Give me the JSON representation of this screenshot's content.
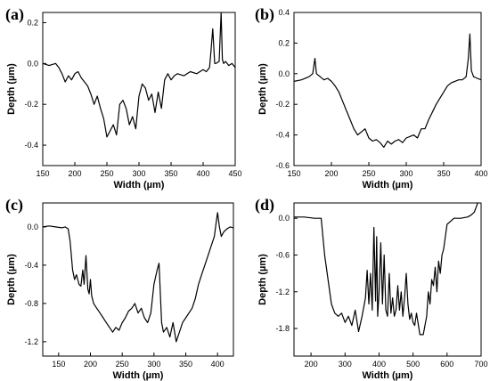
{
  "chart_data": [
    {
      "panel": "(a)",
      "type": "line",
      "xlabel": "Width (µm)",
      "ylabel": "Depth (µm)",
      "xlim": [
        150,
        450
      ],
      "ylim": [
        -0.5,
        0.25
      ],
      "xticks": [
        150,
        200,
        250,
        300,
        350,
        400,
        450
      ],
      "yticks": [
        -0.4,
        -0.2,
        0.0,
        0.2
      ],
      "series": [
        {
          "x": [
            150,
            160,
            170,
            175,
            180,
            185,
            190,
            195,
            200,
            205,
            210,
            215,
            220,
            225,
            230,
            235,
            240,
            245,
            250,
            255,
            260,
            265,
            270,
            275,
            280,
            285,
            290,
            295,
            300,
            305,
            310,
            315,
            320,
            325,
            330,
            335,
            340,
            345,
            350,
            355,
            360,
            370,
            380,
            390,
            400,
            405,
            410,
            412,
            415,
            418,
            420,
            425,
            428,
            430,
            432,
            435,
            440,
            445,
            450
          ],
          "y": [
            0.0,
            -0.01,
            0.0,
            -0.02,
            -0.05,
            -0.09,
            -0.06,
            -0.08,
            -0.05,
            -0.04,
            -0.07,
            -0.09,
            -0.11,
            -0.15,
            -0.2,
            -0.16,
            -0.22,
            -0.27,
            -0.36,
            -0.33,
            -0.3,
            -0.35,
            -0.2,
            -0.18,
            -0.22,
            -0.3,
            -0.26,
            -0.32,
            -0.16,
            -0.1,
            -0.12,
            -0.18,
            -0.15,
            -0.24,
            -0.14,
            -0.22,
            -0.08,
            -0.05,
            -0.08,
            -0.06,
            -0.05,
            -0.06,
            -0.04,
            -0.05,
            -0.03,
            -0.04,
            -0.02,
            0.05,
            0.17,
            0.0,
            0.0,
            0.01,
            0.25,
            0.02,
            0.0,
            0.01,
            -0.01,
            0.0,
            -0.02
          ]
        }
      ]
    },
    {
      "panel": "(b)",
      "type": "line",
      "xlabel": "Width (µm)",
      "ylabel": "Depth (µm)",
      "xlim": [
        150,
        400
      ],
      "ylim": [
        -0.6,
        0.4
      ],
      "xticks": [
        150,
        200,
        250,
        300,
        350,
        400
      ],
      "yticks": [
        -0.6,
        -0.4,
        -0.2,
        0.0,
        0.2,
        0.4
      ],
      "series": [
        {
          "x": [
            150,
            160,
            170,
            175,
            178,
            180,
            185,
            190,
            195,
            200,
            205,
            210,
            215,
            220,
            225,
            230,
            235,
            240,
            245,
            250,
            255,
            260,
            265,
            270,
            275,
            280,
            285,
            290,
            295,
            300,
            305,
            310,
            315,
            320,
            325,
            330,
            335,
            340,
            345,
            350,
            355,
            360,
            365,
            370,
            375,
            380,
            383,
            385,
            387,
            390,
            395,
            400
          ],
          "y": [
            -0.05,
            -0.04,
            -0.02,
            0.0,
            0.1,
            0.0,
            -0.02,
            -0.04,
            -0.03,
            -0.05,
            -0.08,
            -0.12,
            -0.18,
            -0.24,
            -0.3,
            -0.36,
            -0.4,
            -0.38,
            -0.36,
            -0.42,
            -0.44,
            -0.43,
            -0.45,
            -0.48,
            -0.44,
            -0.46,
            -0.44,
            -0.43,
            -0.45,
            -0.42,
            -0.41,
            -0.4,
            -0.42,
            -0.36,
            -0.36,
            -0.3,
            -0.25,
            -0.2,
            -0.16,
            -0.12,
            -0.08,
            -0.06,
            -0.05,
            -0.04,
            -0.04,
            -0.02,
            0.1,
            0.26,
            0.02,
            -0.02,
            -0.03,
            -0.04
          ]
        }
      ]
    },
    {
      "panel": "(c)",
      "type": "line",
      "xlabel": "Width (µm)",
      "ylabel": "Depth (µm)",
      "xlim": [
        125,
        425
      ],
      "ylim": [
        -1.35,
        0.25
      ],
      "xticks": [
        150,
        200,
        250,
        300,
        350,
        400
      ],
      "yticks": [
        -1.2,
        -0.8,
        -0.4,
        0.0
      ],
      "series": [
        {
          "x": [
            125,
            135,
            145,
            155,
            160,
            165,
            168,
            170,
            172,
            175,
            178,
            182,
            185,
            188,
            190,
            193,
            196,
            198,
            200,
            202,
            205,
            210,
            215,
            220,
            225,
            230,
            235,
            240,
            245,
            250,
            255,
            260,
            265,
            270,
            275,
            280,
            285,
            290,
            295,
            300,
            305,
            308,
            310,
            312,
            315,
            320,
            325,
            330,
            335,
            340,
            345,
            350,
            355,
            360,
            365,
            370,
            375,
            380,
            385,
            390,
            395,
            398,
            400,
            403,
            406,
            410,
            415,
            420,
            425
          ],
          "y": [
            0.0,
            0.01,
            0.0,
            -0.01,
            0.0,
            -0.02,
            -0.15,
            -0.3,
            -0.45,
            -0.55,
            -0.5,
            -0.6,
            -0.62,
            -0.45,
            -0.6,
            -0.3,
            -0.65,
            -0.7,
            -0.55,
            -0.72,
            -0.8,
            -0.85,
            -0.9,
            -0.95,
            -1.0,
            -1.05,
            -1.1,
            -1.05,
            -1.08,
            -1.0,
            -0.95,
            -0.88,
            -0.85,
            -0.8,
            -0.9,
            -0.85,
            -0.95,
            -1.0,
            -0.9,
            -0.6,
            -0.45,
            -0.38,
            -0.7,
            -1.0,
            -1.1,
            -1.05,
            -1.15,
            -1.0,
            -1.2,
            -1.1,
            -1.0,
            -0.95,
            -0.9,
            -0.85,
            -0.75,
            -0.6,
            -0.5,
            -0.4,
            -0.3,
            -0.2,
            -0.1,
            0.05,
            0.15,
            0.0,
            -0.1,
            -0.05,
            -0.02,
            0.0,
            -0.01
          ]
        }
      ]
    },
    {
      "panel": "(d)",
      "type": "line",
      "xlabel": "Width (µm)",
      "ylabel": "Depth (µm)",
      "xlim": [
        150,
        700
      ],
      "ylim": [
        -2.25,
        0.25
      ],
      "xticks": [
        200,
        300,
        400,
        500,
        600,
        700
      ],
      "yticks": [
        -1.8,
        -1.2,
        -0.6,
        0.0
      ],
      "series": [
        {
          "x": [
            150,
            180,
            210,
            230,
            240,
            250,
            260,
            270,
            280,
            290,
            300,
            310,
            320,
            330,
            340,
            350,
            360,
            365,
            370,
            375,
            380,
            385,
            390,
            393,
            396,
            400,
            405,
            410,
            415,
            420,
            425,
            430,
            435,
            440,
            445,
            450,
            455,
            460,
            465,
            470,
            475,
            480,
            485,
            490,
            495,
            500,
            505,
            510,
            520,
            530,
            540,
            545,
            550,
            555,
            560,
            565,
            570,
            575,
            580,
            585,
            590,
            600,
            620,
            640,
            660,
            670,
            680,
            690
          ],
          "y": [
            0.02,
            0.02,
            0.0,
            0.0,
            -0.6,
            -1.0,
            -1.4,
            -1.55,
            -1.6,
            -1.55,
            -1.7,
            -1.6,
            -1.75,
            -1.5,
            -1.85,
            -1.6,
            -1.3,
            -0.85,
            -1.4,
            -0.9,
            -1.5,
            -0.15,
            -1.35,
            -0.3,
            -1.6,
            -1.2,
            -0.4,
            -1.4,
            -0.6,
            -1.5,
            -1.6,
            -0.9,
            -1.55,
            -1.3,
            -1.6,
            -1.5,
            -1.1,
            -1.5,
            -1.2,
            -1.6,
            -1.3,
            -0.9,
            -1.4,
            -1.65,
            -1.55,
            -1.7,
            -1.75,
            -1.55,
            -1.9,
            -1.9,
            -1.6,
            -1.2,
            -1.4,
            -1.0,
            -1.1,
            -0.8,
            -1.2,
            -0.7,
            -0.9,
            -0.6,
            -0.5,
            -0.1,
            0.0,
            0.0,
            0.02,
            0.05,
            0.1,
            0.25
          ]
        }
      ]
    }
  ]
}
